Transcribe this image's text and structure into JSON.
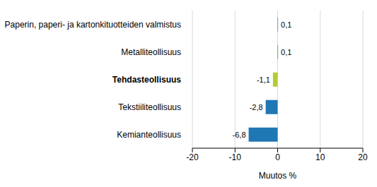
{
  "chart_data": {
    "type": "bar",
    "orientation": "horizontal",
    "categories": [
      "Paperin, paperi- ja kartonkituotteiden valmistus",
      "Metalliteollisuus",
      "Tehdasteollisuus",
      "Tekstiiliteollisuus",
      "Kemianteollisuus"
    ],
    "values": [
      0.1,
      0.1,
      -1.1,
      -2.8,
      -6.8
    ],
    "value_labels": [
      "0,1",
      "0,1",
      "-1,1",
      "-2,8",
      "-6,8"
    ],
    "colors": [
      "#1f77b4",
      "#1f77b4",
      "#b2cc33",
      "#1f77b4",
      "#1f77b4"
    ],
    "xlabel": "Muutos %",
    "xlim": [
      -20,
      20
    ],
    "xticks": [
      -20,
      -10,
      0,
      10,
      20
    ],
    "grid": true,
    "data_labels": true
  }
}
